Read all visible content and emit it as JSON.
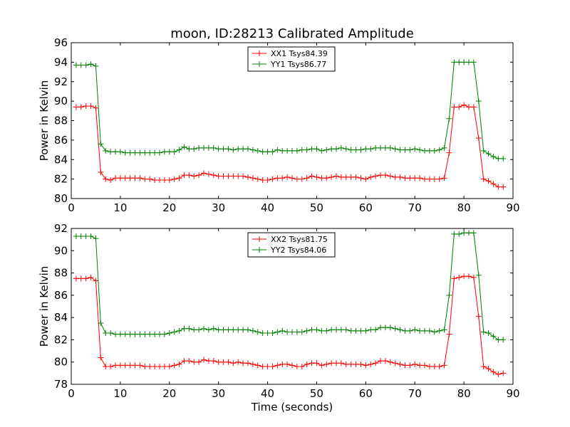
{
  "figure_title": "moon, ID:28213 Calibrated Amplitude",
  "chart_data": [
    {
      "type": "line",
      "title": "moon, ID:28213 Calibrated Amplitude",
      "xlabel": "",
      "ylabel": "Power in Kelvin",
      "xlim": [
        0,
        90
      ],
      "ylim": [
        80,
        96
      ],
      "xticks": [
        0,
        10,
        20,
        30,
        40,
        50,
        60,
        70,
        80,
        90
      ],
      "yticks": [
        80,
        82,
        84,
        86,
        88,
        90,
        92,
        94,
        96
      ],
      "grid": false,
      "legend_position": "top-center",
      "x": [
        1,
        2,
        3,
        4,
        5,
        6,
        7,
        8,
        9,
        10,
        11,
        12,
        13,
        14,
        15,
        16,
        17,
        18,
        19,
        20,
        21,
        22,
        23,
        24,
        25,
        26,
        27,
        28,
        29,
        30,
        31,
        32,
        33,
        34,
        35,
        36,
        37,
        38,
        39,
        40,
        41,
        42,
        43,
        44,
        45,
        46,
        47,
        48,
        49,
        50,
        51,
        52,
        53,
        54,
        55,
        56,
        57,
        58,
        59,
        60,
        61,
        62,
        63,
        64,
        65,
        66,
        67,
        68,
        69,
        70,
        71,
        72,
        73,
        74,
        75,
        76,
        77,
        78,
        79,
        80,
        81,
        82,
        83,
        84,
        85,
        86,
        87,
        88
      ],
      "series": [
        {
          "name": "XX1 Tsys84.39",
          "color": "#ff0000",
          "values": [
            89.4,
            89.4,
            89.5,
            89.5,
            89.3,
            82.7,
            82.0,
            81.9,
            82.1,
            82.1,
            82.1,
            82.1,
            82.1,
            82.1,
            82.0,
            82.0,
            81.9,
            81.9,
            81.9,
            81.9,
            82.0,
            82.1,
            82.4,
            82.4,
            82.3,
            82.4,
            82.6,
            82.5,
            82.4,
            82.3,
            82.3,
            82.3,
            82.3,
            82.3,
            82.3,
            82.2,
            82.1,
            82.0,
            81.9,
            81.9,
            82.0,
            82.1,
            82.1,
            82.2,
            82.1,
            82.0,
            82.0,
            82.1,
            82.3,
            82.2,
            82.1,
            82.1,
            82.2,
            82.3,
            82.2,
            82.2,
            82.2,
            82.2,
            82.1,
            82.0,
            82.2,
            82.3,
            82.4,
            82.4,
            82.3,
            82.2,
            82.2,
            82.1,
            82.1,
            82.1,
            82.1,
            82.0,
            82.0,
            82.0,
            82.0,
            82.1,
            84.7,
            89.4,
            89.4,
            89.6,
            89.4,
            89.4,
            86.2,
            82.0,
            81.8,
            81.5,
            81.2,
            81.2
          ]
        },
        {
          "name": "YY1 Tsys86.77",
          "color": "#008000",
          "values": [
            93.7,
            93.7,
            93.7,
            93.8,
            93.6,
            85.6,
            84.9,
            84.8,
            84.8,
            84.8,
            84.7,
            84.7,
            84.7,
            84.7,
            84.7,
            84.7,
            84.7,
            84.7,
            84.8,
            84.8,
            84.8,
            85.0,
            85.3,
            85.1,
            85.1,
            85.2,
            85.2,
            85.2,
            85.2,
            85.1,
            85.1,
            85.1,
            85.0,
            85.1,
            85.1,
            85.1,
            85.0,
            84.9,
            84.8,
            84.8,
            84.8,
            85.0,
            84.9,
            84.9,
            84.9,
            84.9,
            85.0,
            85.0,
            85.1,
            85.1,
            84.9,
            85.0,
            85.1,
            85.1,
            85.2,
            85.1,
            85.0,
            85.0,
            85.0,
            85.1,
            85.1,
            85.2,
            85.2,
            85.2,
            85.2,
            85.1,
            85.0,
            85.0,
            85.0,
            85.1,
            85.0,
            84.9,
            84.9,
            84.9,
            85.0,
            85.2,
            88.2,
            94.0,
            94.0,
            94.0,
            94.0,
            94.0,
            90.0,
            84.9,
            84.6,
            84.3,
            84.1,
            84.1
          ]
        }
      ]
    },
    {
      "type": "line",
      "title": "",
      "xlabel": "Time (seconds)",
      "ylabel": "Power in Kelvin",
      "xlim": [
        0,
        90
      ],
      "ylim": [
        78,
        92
      ],
      "xticks": [
        0,
        10,
        20,
        30,
        40,
        50,
        60,
        70,
        80,
        90
      ],
      "yticks": [
        78,
        80,
        82,
        84,
        86,
        88,
        90,
        92
      ],
      "grid": false,
      "legend_position": "top-center",
      "x": [
        1,
        2,
        3,
        4,
        5,
        6,
        7,
        8,
        9,
        10,
        11,
        12,
        13,
        14,
        15,
        16,
        17,
        18,
        19,
        20,
        21,
        22,
        23,
        24,
        25,
        26,
        27,
        28,
        29,
        30,
        31,
        32,
        33,
        34,
        35,
        36,
        37,
        38,
        39,
        40,
        41,
        42,
        43,
        44,
        45,
        46,
        47,
        48,
        49,
        50,
        51,
        52,
        53,
        54,
        55,
        56,
        57,
        58,
        59,
        60,
        61,
        62,
        63,
        64,
        65,
        66,
        67,
        68,
        69,
        70,
        71,
        72,
        73,
        74,
        75,
        76,
        77,
        78,
        79,
        80,
        81,
        82,
        83,
        84,
        85,
        86,
        87,
        88
      ],
      "series": [
        {
          "name": "XX2 Tsys81.75",
          "color": "#ff0000",
          "values": [
            87.5,
            87.5,
            87.5,
            87.6,
            87.3,
            80.4,
            79.6,
            79.6,
            79.7,
            79.7,
            79.7,
            79.7,
            79.7,
            79.7,
            79.6,
            79.6,
            79.6,
            79.6,
            79.6,
            79.6,
            79.7,
            79.8,
            80.1,
            80.1,
            80.0,
            80.0,
            80.2,
            80.1,
            80.1,
            80.0,
            80.0,
            80.0,
            79.9,
            80.0,
            79.9,
            79.9,
            79.8,
            79.7,
            79.6,
            79.6,
            79.6,
            79.7,
            79.8,
            79.8,
            79.7,
            79.6,
            79.6,
            79.8,
            79.9,
            79.9,
            79.7,
            79.8,
            79.9,
            79.9,
            79.9,
            79.8,
            79.8,
            79.8,
            79.8,
            79.7,
            79.8,
            79.9,
            80.1,
            80.1,
            80.0,
            79.9,
            79.8,
            79.7,
            79.7,
            79.8,
            79.7,
            79.7,
            79.6,
            79.6,
            79.6,
            79.7,
            82.5,
            87.5,
            87.6,
            87.7,
            87.7,
            87.6,
            84.1,
            79.6,
            79.4,
            79.1,
            78.9,
            79.0
          ]
        },
        {
          "name": "YY2 Tsys84.06",
          "color": "#008000",
          "values": [
            91.3,
            91.3,
            91.3,
            91.3,
            91.1,
            83.5,
            82.6,
            82.6,
            82.5,
            82.5,
            82.5,
            82.5,
            82.5,
            82.5,
            82.5,
            82.5,
            82.5,
            82.5,
            82.5,
            82.6,
            82.7,
            82.8,
            83.0,
            83.0,
            82.9,
            82.9,
            83.0,
            82.9,
            83.0,
            82.9,
            82.9,
            82.9,
            82.9,
            82.9,
            82.9,
            82.9,
            82.8,
            82.7,
            82.6,
            82.6,
            82.6,
            82.7,
            82.8,
            82.7,
            82.7,
            82.7,
            82.7,
            82.8,
            82.9,
            82.9,
            82.8,
            82.8,
            82.9,
            82.9,
            82.9,
            82.9,
            82.8,
            82.8,
            82.8,
            82.8,
            82.9,
            82.9,
            83.1,
            83.1,
            83.1,
            83.0,
            82.9,
            82.8,
            82.8,
            82.9,
            82.8,
            82.8,
            82.8,
            82.7,
            82.8,
            82.9,
            86.0,
            91.5,
            91.5,
            91.6,
            91.6,
            91.6,
            87.8,
            82.7,
            82.6,
            82.3,
            82.0,
            82.0
          ]
        }
      ]
    }
  ]
}
